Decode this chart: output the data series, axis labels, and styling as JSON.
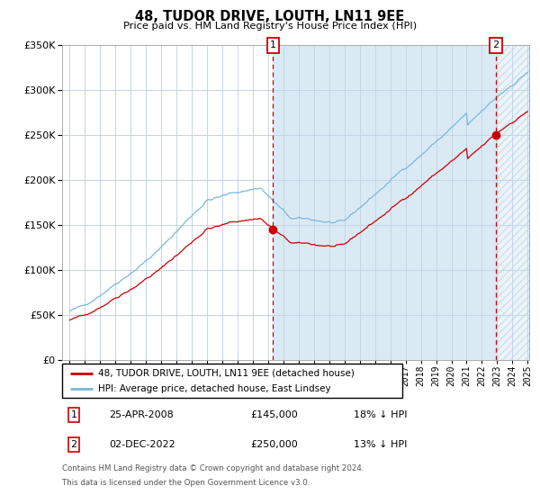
{
  "title": "48, TUDOR DRIVE, LOUTH, LN11 9EE",
  "subtitle": "Price paid vs. HM Land Registry's House Price Index (HPI)",
  "hpi_label": "HPI: Average price, detached house, East Lindsey",
  "price_label": "48, TUDOR DRIVE, LOUTH, LN11 9EE (detached house)",
  "annotation1": {
    "label": "1",
    "date_str": "25-APR-2008",
    "price_str": "£145,000",
    "pct": "18% ↓ HPI"
  },
  "annotation2": {
    "label": "2",
    "date_str": "02-DEC-2022",
    "price_str": "£250,000",
    "pct": "13% ↓ HPI"
  },
  "footer1": "Contains HM Land Registry data © Crown copyright and database right 2024.",
  "footer2": "This data is licensed under the Open Government Licence v3.0.",
  "hpi_color": "#7ab8d9",
  "price_color": "#cc0000",
  "bg_shaded_color": "#daeaf5",
  "grid_color": "#c5d5e5",
  "annotation_box_color": "#cc0000",
  "ylim": [
    0,
    350000
  ],
  "yticks": [
    0,
    50000,
    100000,
    150000,
    200000,
    250000,
    300000,
    350000
  ],
  "start_year": 1995,
  "end_year": 2025,
  "sale1_year": 2008.32,
  "sale2_year": 2022.92,
  "sale1_price": 145000,
  "sale2_price": 250000
}
